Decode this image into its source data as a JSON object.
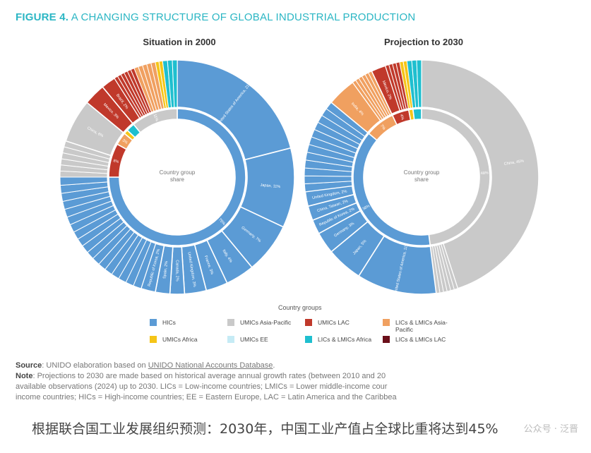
{
  "figure": {
    "number": "FIGURE 4.",
    "title": "A CHANGING STRUCTURE OF GLOBAL INDUSTRIAL PRODUCTION"
  },
  "colors": {
    "hics": "#5b9bd5",
    "umics_ap": "#c9c9c9",
    "umics_lac": "#c0392b",
    "lics_ap": "#f0a060",
    "umics_africa": "#f5c518",
    "umics_ee": "#c6ebf5",
    "lics_africa": "#1fbfcf",
    "lics_lac": "#6b0f1a"
  },
  "chart_data": [
    {
      "type": "pie",
      "title": "Situation in 2000",
      "center_label": "Country group share",
      "inner_ring": [
        {
          "group": "HICs",
          "value": 75,
          "label": "75%"
        },
        {
          "group": "UMICs LAC",
          "value": 8,
          "label": "8%"
        },
        {
          "group": "LICs & LMICs Asia-Pacific",
          "value": 3,
          "label": "3%"
        },
        {
          "group": "UMICs Africa",
          "value": 1,
          "label": ""
        },
        {
          "group": "LICs & LMICs Africa",
          "value": 2,
          "label": ""
        },
        {
          "group": "UMICs Asia-Pacific",
          "value": 11,
          "label": "11%"
        }
      ],
      "outer_ring": [
        {
          "group": "HICs",
          "value": 21,
          "label": "United States of America, 21%"
        },
        {
          "group": "HICs",
          "value": 11,
          "label": "Japan, 11%"
        },
        {
          "group": "HICs",
          "value": 7,
          "label": "Germany, 7%"
        },
        {
          "group": "HICs",
          "value": 4,
          "label": "Italy, 4%"
        },
        {
          "group": "HICs",
          "value": 3,
          "label": "France, 3%"
        },
        {
          "group": "HICs",
          "value": 3,
          "label": "United Kingdom, 3%"
        },
        {
          "group": "HICs",
          "value": 2,
          "label": "Canada, 2%"
        },
        {
          "group": "HICs",
          "value": 2,
          "label": "Spain, 2%"
        },
        {
          "group": "HICs",
          "value": 2,
          "label": "Republic of Korea, 2%"
        },
        {
          "group": "HICs",
          "value": 20,
          "label": "",
          "split": 18
        },
        {
          "group": "UMICs Asia-Pacific",
          "value": 5,
          "label": "",
          "split": 6
        },
        {
          "group": "UMICs Asia-Pacific",
          "value": 6,
          "label": "China, 6%"
        },
        {
          "group": "UMICs LAC",
          "value": 3,
          "label": "Mexico, 3%"
        },
        {
          "group": "UMICs LAC",
          "value": 2,
          "label": "Brazil, 2%"
        },
        {
          "group": "UMICs LAC",
          "value": 3,
          "label": "",
          "split": 6
        },
        {
          "group": "LICs & LMICs Asia-Pacific",
          "value": 3,
          "label": "",
          "split": 5
        },
        {
          "group": "UMICs Africa",
          "value": 1,
          "label": "",
          "split": 2
        },
        {
          "group": "LICs & LMICs Africa",
          "value": 2,
          "label": "",
          "split": 3
        }
      ]
    },
    {
      "type": "pie",
      "title": "Projection to 2030",
      "center_label": "Country group share",
      "inner_ring": [
        {
          "group": "UMICs Asia-Pacific",
          "value": 48,
          "label": "48%"
        },
        {
          "group": "HICs",
          "value": 38,
          "label": "38%"
        },
        {
          "group": "LICs & LMICs Asia-Pacific",
          "value": 7,
          "label": "7%"
        },
        {
          "group": "UMICs LAC",
          "value": 4,
          "label": "4%"
        },
        {
          "group": "UMICs Africa",
          "value": 1,
          "label": ""
        },
        {
          "group": "LICs & LMICs Africa",
          "value": 2,
          "label": ""
        }
      ],
      "outer_ring": [
        {
          "group": "UMICs Asia-Pacific",
          "value": 45,
          "label": "China, 45%"
        },
        {
          "group": "UMICs Asia-Pacific",
          "value": 3,
          "label": "",
          "split": 6
        },
        {
          "group": "HICs",
          "value": 11,
          "label": "United States of America, 11%"
        },
        {
          "group": "HICs",
          "value": 5,
          "label": "Japan, 5%"
        },
        {
          "group": "HICs",
          "value": 3,
          "label": "Germany, 3%"
        },
        {
          "group": "HICs",
          "value": 2,
          "label": "Republic of Korea, 2%"
        },
        {
          "group": "HICs",
          "value": 2,
          "label": "China, Taiwan, 2%"
        },
        {
          "group": "HICs",
          "value": 2,
          "label": "United Kingdom, 2%"
        },
        {
          "group": "HICs",
          "value": 13,
          "label": "",
          "split": 12
        },
        {
          "group": "LICs & LMICs Asia-Pacific",
          "value": 4,
          "label": "India, 4%"
        },
        {
          "group": "LICs & LMICs Asia-Pacific",
          "value": 3,
          "label": "",
          "split": 6
        },
        {
          "group": "UMICs LAC",
          "value": 2,
          "label": "Mexico, 2%"
        },
        {
          "group": "UMICs LAC",
          "value": 2,
          "label": "",
          "split": 4
        },
        {
          "group": "UMICs Africa",
          "value": 1,
          "label": "",
          "split": 2
        },
        {
          "group": "LICs & LMICs Africa",
          "value": 2,
          "label": "",
          "split": 3
        }
      ]
    }
  ],
  "legend": {
    "title": "Country groups",
    "items": [
      {
        "key": "hics",
        "label": "HICs"
      },
      {
        "key": "umics_ap",
        "label": "UMICs Asia-Pacific"
      },
      {
        "key": "umics_lac",
        "label": "UMICs LAC"
      },
      {
        "key": "lics_ap",
        "label": "LICs & LMICs Asia-Pacific"
      },
      {
        "key": "umics_africa",
        "label": "UMICs Africa"
      },
      {
        "key": "umics_ee",
        "label": "UMICs EE"
      },
      {
        "key": "lics_africa",
        "label": "LICs & LMICs Africa"
      },
      {
        "key": "lics_lac",
        "label": "LICs & LMICs LAC"
      }
    ]
  },
  "notes": {
    "source_label": "Source",
    "source_text": ": UNIDO elaboration based on ",
    "source_link": "UNIDO National Accounts Database",
    "source_end": ".",
    "note_label": "Note",
    "note_text": ": Projections to 2030 are made based on historical average annual growth rates (between 2010 and 20",
    "note_line2": "available observations (2024) up to 2030. LICs = Low-income countries; LMICs = Lower middle-income cour",
    "note_line3": "income countries; HICs = High-income countries; EE = Eastern Europe, LAC = Latin America and the Caribbea"
  },
  "caption": "根据联合国工业发展组织预测：2030年，中国工业产值占全球比重将达到45%",
  "watermark": "公众号 · 泛晋"
}
